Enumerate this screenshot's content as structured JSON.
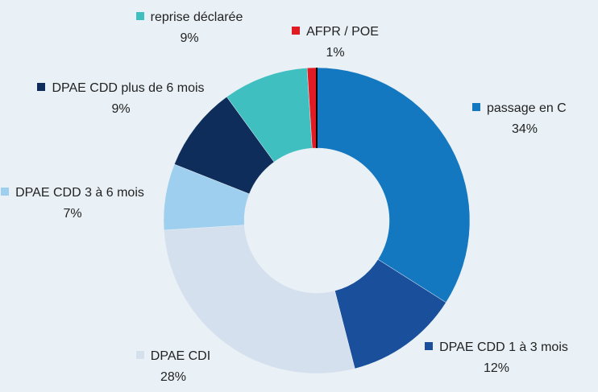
{
  "chart_data": {
    "type": "donut",
    "categories": [
      "passage en C",
      "DPAE CDD 1 à 3 mois",
      "DPAE CDI",
      "DPAE CDD 3 à 6 mois",
      "DPAE CDD plus de 6 mois",
      "reprise déclarée",
      "AFPR / POE"
    ],
    "values": [
      34,
      12,
      28,
      7,
      9,
      9,
      1
    ],
    "value_labels": [
      "34%",
      "12%",
      "28%",
      "7%",
      "9%",
      "9%",
      "1%"
    ],
    "colors": [
      "#1478c0",
      "#1a4f9c",
      "#d5e0ee",
      "#9ecfef",
      "#0f2d5a",
      "#3fbfbf",
      "#e01b24"
    ]
  }
}
